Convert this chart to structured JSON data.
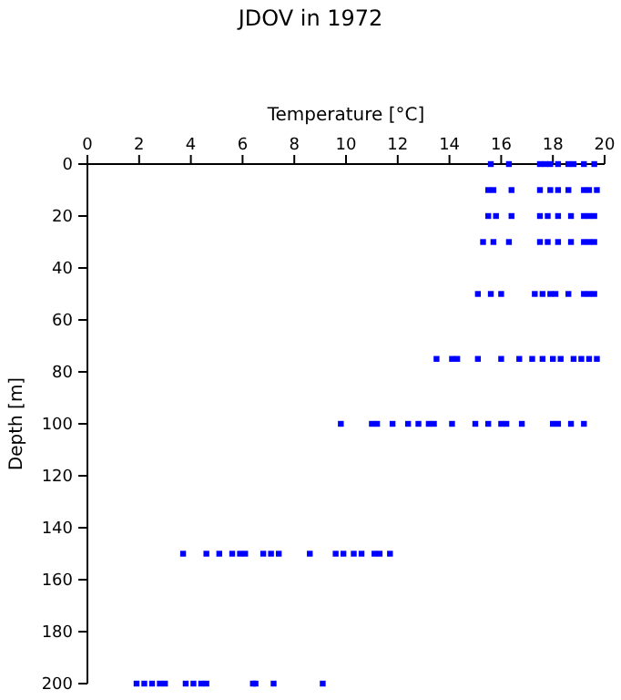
{
  "chart_data": {
    "type": "scatter",
    "title": "JDOV in 1972",
    "xlabel": "Temperature [°C]",
    "ylabel": "Depth [m]",
    "xlim": [
      0,
      20
    ],
    "xticks": [
      0,
      2,
      4,
      6,
      8,
      10,
      12,
      14,
      16,
      18,
      20
    ],
    "ylim": [
      200,
      0
    ],
    "yticks": [
      0,
      20,
      40,
      60,
      80,
      100,
      120,
      140,
      160,
      180,
      200
    ],
    "grid": false,
    "marker": "square",
    "series": [
      {
        "color": "#0000ff",
        "x": [
          15.6,
          16.3,
          17.5,
          17.7,
          17.9,
          18.2,
          18.6,
          18.8,
          19.2,
          19.6,
          15.5,
          15.7,
          16.4,
          17.5,
          17.9,
          18.2,
          18.6,
          19.2,
          19.4,
          19.7,
          15.5,
          15.8,
          16.4,
          17.5,
          17.8,
          18.2,
          18.7,
          19.2,
          19.4,
          19.6,
          15.3,
          15.7,
          16.3,
          17.5,
          17.8,
          18.2,
          18.7,
          19.2,
          19.4,
          19.6,
          15.1,
          15.6,
          16.0,
          17.3,
          17.6,
          17.9,
          18.1,
          18.6,
          19.2,
          19.4,
          19.6,
          13.5,
          14.1,
          14.3,
          15.1,
          16.0,
          16.7,
          17.2,
          17.6,
          18.0,
          18.3,
          18.8,
          19.1,
          19.4,
          19.7,
          9.8,
          11.0,
          11.2,
          11.8,
          12.4,
          12.8,
          13.2,
          13.4,
          14.1,
          15.0,
          15.5,
          16.0,
          16.2,
          16.8,
          18.0,
          18.2,
          18.7,
          19.2,
          3.7,
          4.6,
          5.1,
          5.6,
          5.9,
          6.1,
          6.8,
          7.1,
          7.4,
          8.6,
          9.6,
          9.9,
          10.3,
          10.6,
          11.1,
          11.3,
          11.7,
          1.9,
          2.2,
          2.5,
          2.8,
          3.0,
          3.8,
          4.1,
          4.4,
          4.6,
          6.4,
          6.5,
          7.2,
          9.1
        ],
        "values": [
          0,
          0,
          0,
          0,
          0,
          0,
          0,
          0,
          0,
          0,
          10,
          10,
          10,
          10,
          10,
          10,
          10,
          10,
          10,
          10,
          20,
          20,
          20,
          20,
          20,
          20,
          20,
          20,
          20,
          20,
          30,
          30,
          30,
          30,
          30,
          30,
          30,
          30,
          30,
          30,
          50,
          50,
          50,
          50,
          50,
          50,
          50,
          50,
          50,
          50,
          50,
          75,
          75,
          75,
          75,
          75,
          75,
          75,
          75,
          75,
          75,
          75,
          75,
          75,
          75,
          100,
          100,
          100,
          100,
          100,
          100,
          100,
          100,
          100,
          100,
          100,
          100,
          100,
          100,
          100,
          100,
          100,
          100,
          150,
          150,
          150,
          150,
          150,
          150,
          150,
          150,
          150,
          150,
          150,
          150,
          150,
          150,
          150,
          150,
          150,
          200,
          200,
          200,
          200,
          200,
          200,
          200,
          200,
          200,
          200,
          200,
          200,
          200
        ]
      }
    ]
  }
}
